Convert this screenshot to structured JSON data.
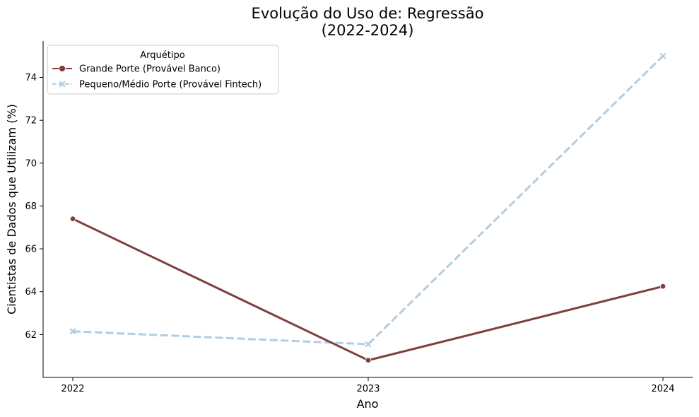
{
  "chart_data": {
    "type": "line",
    "title_line1": "Evolução do Uso de: Regressão",
    "title_line2": "(2022-2024)",
    "xlabel": "Ano",
    "ylabel": "Cientistas de Dados que Utilizam (%)",
    "x": [
      "2022",
      "2023",
      "2024"
    ],
    "yticks": [
      "62",
      "64",
      "66",
      "68",
      "70",
      "72",
      "74"
    ],
    "ylim": [
      60.0,
      75.7
    ],
    "grid": false,
    "legend": {
      "title": "Arquétipo",
      "placement": "top-left"
    },
    "series": [
      {
        "name": "Grande Porte (Provável Banco)",
        "values": [
          67.4,
          60.8,
          64.25
        ],
        "color": "#7f3f3f",
        "marker": "circle",
        "dash": "solid"
      },
      {
        "name": "Pequeno/Médio Porte (Provável Fintech)",
        "values": [
          62.15,
          61.55,
          75.0
        ],
        "color": "#b3cde0",
        "marker": "x",
        "dash": "dashed"
      }
    ]
  }
}
